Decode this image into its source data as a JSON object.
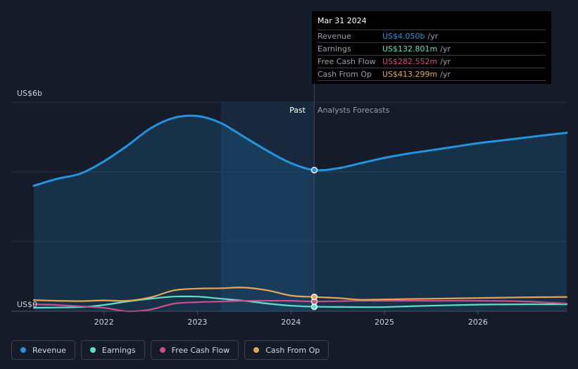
{
  "colors": {
    "revenue": "#2394df",
    "earnings": "#5fe0c8",
    "free_cash_flow": "#cc4f8c",
    "cash_from_op": "#e6a656",
    "grid": "#2b3240",
    "text": "#d0d4da",
    "highlight_band": "#1c3550"
  },
  "tooltip": {
    "date": "Mar 31 2024",
    "rows": [
      {
        "label": "Revenue",
        "value": "US$4.050b",
        "unit": "/yr",
        "color": "#2394df"
      },
      {
        "label": "Earnings",
        "value": "US$132.801m",
        "unit": "/yr",
        "color": "#5fe0c8"
      },
      {
        "label": "Free Cash Flow",
        "value": "US$282.552m",
        "unit": "/yr",
        "color": "#cc4f8c"
      },
      {
        "label": "Cash From Op",
        "value": "US$413.299m",
        "unit": "/yr",
        "color": "#e6a656"
      }
    ]
  },
  "labels": {
    "past": "Past",
    "forecast": "Analysts Forecasts"
  },
  "legend": [
    {
      "label": "Revenue",
      "color": "#2394df"
    },
    {
      "label": "Earnings",
      "color": "#5fe0c8"
    },
    {
      "label": "Free Cash Flow",
      "color": "#cc4f8c"
    },
    {
      "label": "Cash From Op",
      "color": "#e6a656"
    }
  ],
  "chart_data": {
    "type": "area",
    "title": "",
    "xlabel": "",
    "ylabel": "",
    "unit": "US$ billions",
    "xlim": [
      2021.25,
      2026.95
    ],
    "ylim": [
      0,
      6
    ],
    "y_tick_labels": [
      {
        "value": 0,
        "label": "US$0"
      },
      {
        "value": 6,
        "label": "US$6b"
      }
    ],
    "x_ticks": [
      2022,
      2023,
      2024,
      2025,
      2026
    ],
    "past_end": 2024.25,
    "highlight_start": 2023.25,
    "highlight_end": 2024.25,
    "marker_x": 2024.25,
    "series": [
      {
        "name": "Revenue",
        "color": "#2394df",
        "fill": true,
        "x": [
          2021.25,
          2021.5,
          2021.75,
          2022.0,
          2022.25,
          2022.5,
          2022.75,
          2023.0,
          2023.25,
          2023.5,
          2023.75,
          2024.0,
          2024.25,
          2024.5,
          2024.75,
          2025.0,
          2025.25,
          2025.5,
          2025.75,
          2026.0,
          2026.25,
          2026.5,
          2026.75,
          2026.95
        ],
        "values": [
          3.6,
          3.8,
          3.95,
          4.3,
          4.75,
          5.25,
          5.55,
          5.6,
          5.4,
          5.0,
          4.6,
          4.25,
          4.05,
          4.1,
          4.25,
          4.4,
          4.52,
          4.62,
          4.72,
          4.82,
          4.9,
          4.98,
          5.06,
          5.12
        ]
      },
      {
        "name": "Earnings",
        "color": "#5fe0c8",
        "fill": false,
        "x": [
          2021.25,
          2021.75,
          2022.0,
          2022.25,
          2022.5,
          2022.75,
          2023.0,
          2023.25,
          2023.5,
          2023.75,
          2024.0,
          2024.25,
          2024.75,
          2025.0,
          2025.5,
          2026.0,
          2026.5,
          2026.95
        ],
        "values": [
          0.1,
          0.12,
          0.18,
          0.28,
          0.36,
          0.42,
          0.42,
          0.36,
          0.3,
          0.22,
          0.16,
          0.13,
          0.12,
          0.12,
          0.16,
          0.19,
          0.2,
          0.2
        ]
      },
      {
        "name": "Free Cash Flow",
        "color": "#cc4f8c",
        "fill": false,
        "x": [
          2021.25,
          2021.5,
          2021.75,
          2022.0,
          2022.25,
          2022.5,
          2022.75,
          2023.0,
          2023.25,
          2023.5,
          2023.75,
          2024.0,
          2024.25,
          2024.75,
          2025.0,
          2025.5,
          2026.0,
          2026.5,
          2026.95
        ],
        "values": [
          0.2,
          0.18,
          0.14,
          0.1,
          0.0,
          0.05,
          0.22,
          0.26,
          0.28,
          0.3,
          0.3,
          0.3,
          0.28,
          0.3,
          0.3,
          0.3,
          0.3,
          0.28,
          0.22
        ]
      },
      {
        "name": "Cash From Op",
        "color": "#e6a656",
        "fill": false,
        "x": [
          2021.25,
          2021.5,
          2021.75,
          2022.0,
          2022.25,
          2022.5,
          2022.75,
          2023.0,
          2023.25,
          2023.5,
          2023.75,
          2024.0,
          2024.25,
          2024.5,
          2024.75,
          2025.0,
          2025.5,
          2026.0,
          2026.5,
          2026.95
        ],
        "values": [
          0.32,
          0.3,
          0.29,
          0.31,
          0.3,
          0.4,
          0.6,
          0.65,
          0.66,
          0.68,
          0.6,
          0.45,
          0.41,
          0.38,
          0.33,
          0.34,
          0.36,
          0.38,
          0.4,
          0.41
        ]
      }
    ]
  }
}
